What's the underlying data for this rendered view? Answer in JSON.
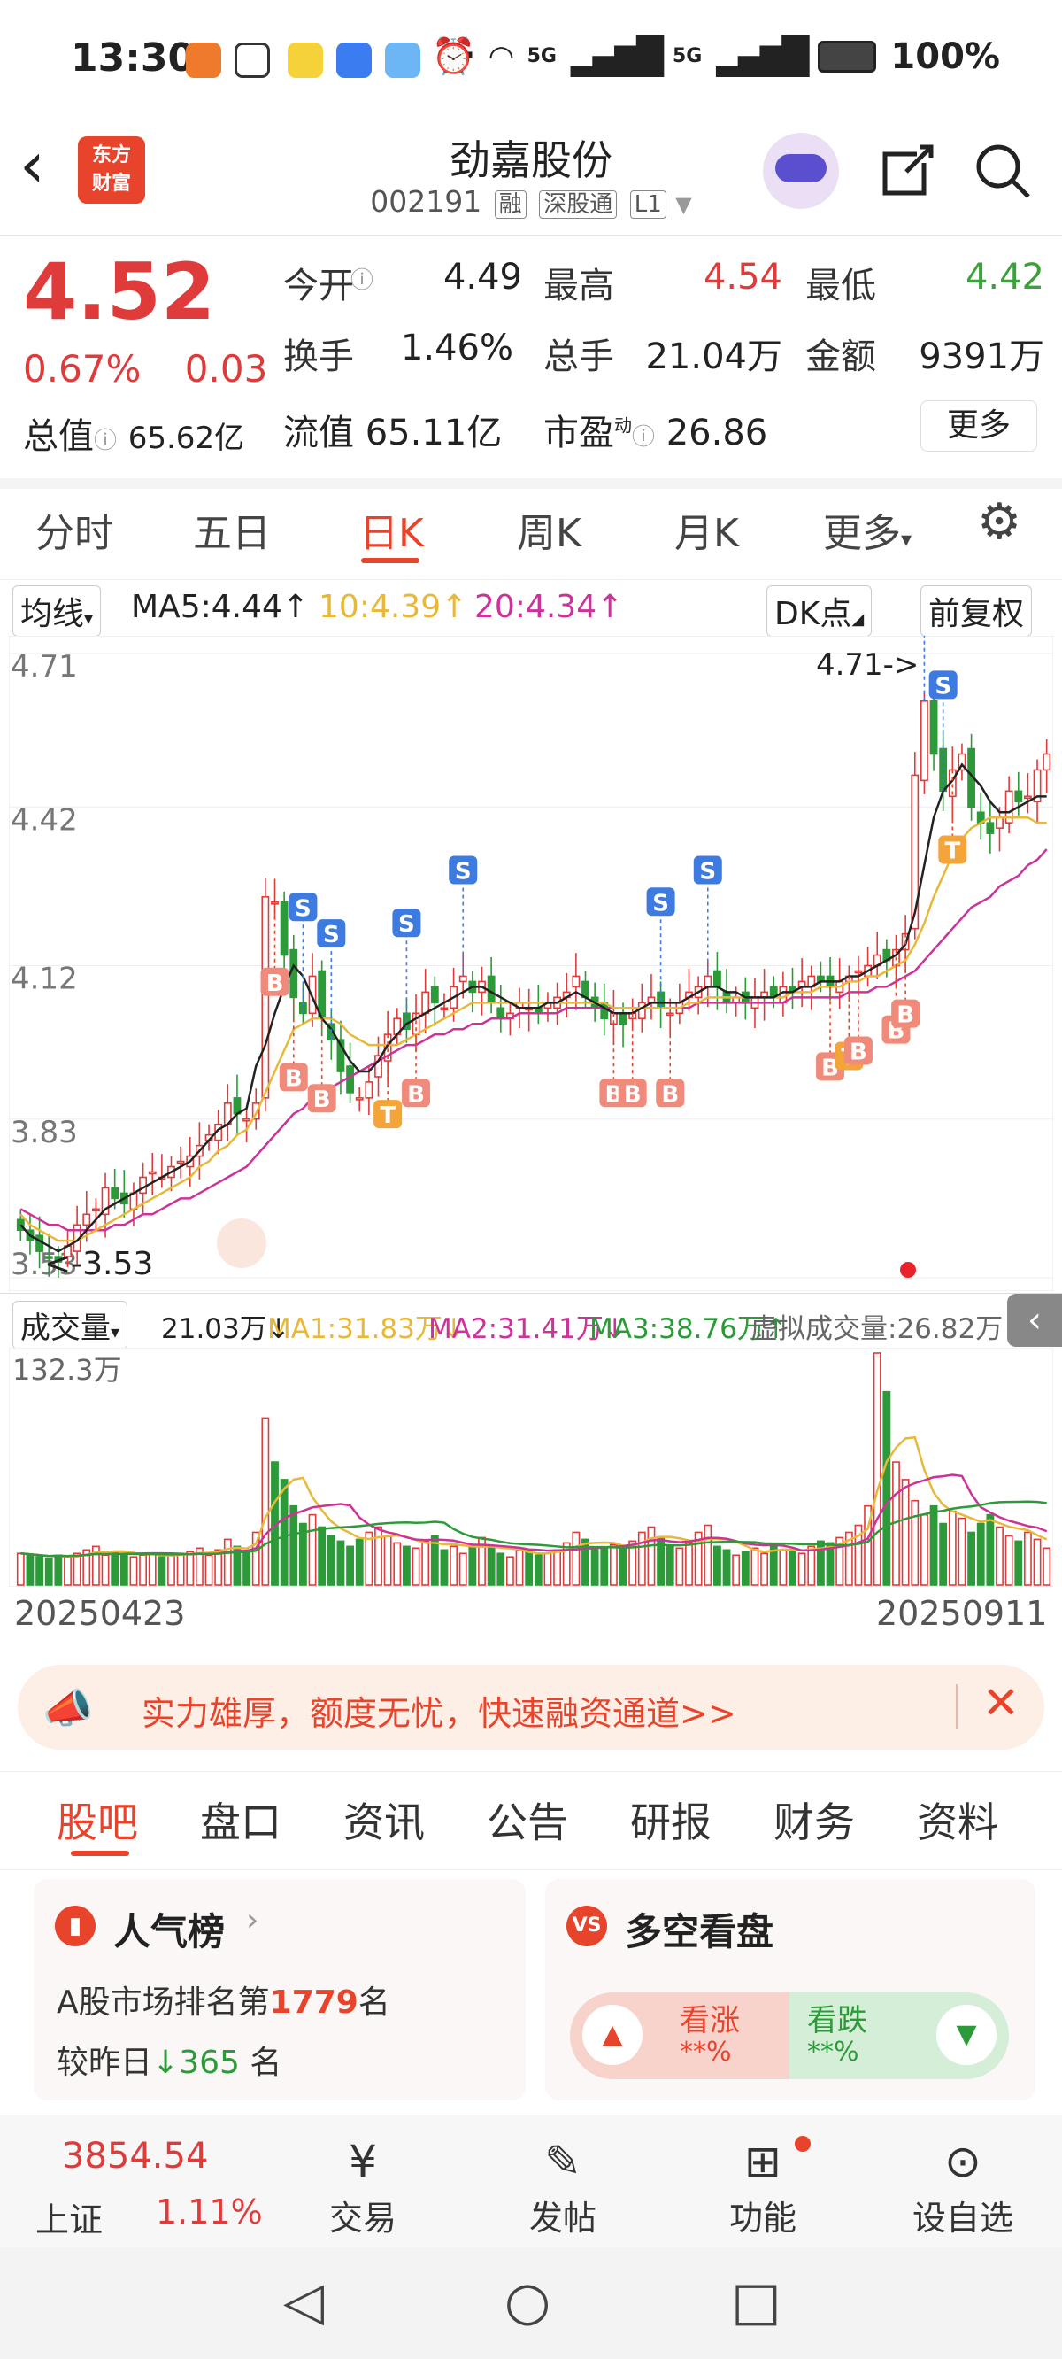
{
  "status": {
    "time": "13:30",
    "dots": "···",
    "net1": "5G",
    "net2": "5G",
    "battery": "100%"
  },
  "header": {
    "logo_line1": "东方",
    "logo_line2": "财富",
    "stock_name": "劲嘉股份",
    "stock_code": "002191",
    "tags": [
      "融",
      "深股通",
      "L1"
    ]
  },
  "quote": {
    "price": "4.52",
    "change_pct": "0.67%",
    "change": "0.03",
    "rows": [
      [
        {
          "k": "今开",
          "v": "4.49",
          "c": "#222"
        },
        {
          "k": "最高",
          "v": "4.54",
          "c": "#e03b3b"
        },
        {
          "k": "最低",
          "v": "4.42",
          "c": "#3aa23a"
        }
      ],
      [
        {
          "k": "换手",
          "v": "1.46%",
          "c": "#222"
        },
        {
          "k": "总手",
          "v": "21.04万",
          "c": "#222"
        },
        {
          "k": "金额",
          "v": "9391万",
          "c": "#222"
        }
      ]
    ],
    "total_value_label": "总值",
    "total_value": "65.62亿",
    "float_label": "流值",
    "float_value": "65.11亿",
    "pe_label": "市盈",
    "pe_sup": "动",
    "pe_value": "26.86",
    "more": "更多"
  },
  "tabs": [
    "分时",
    "五日",
    "日K",
    "周K",
    "月K",
    "更多"
  ],
  "ma": {
    "select": "均线",
    "ma5": "MA5:4.44↑",
    "ma10": "10:4.39↑",
    "ma20": "20:4.34↑",
    "dk": "DK点",
    "fq": "前复权"
  },
  "chart_data": {
    "type": "candlestick",
    "ylim": [
      3.53,
      4.71
    ],
    "y_ticks": [
      "4.71",
      "4.42",
      "4.12",
      "3.83",
      "3.53"
    ],
    "max_label": "4.71->",
    "min_label": "<-3.53",
    "x_start": "20250423",
    "x_end": "20250911",
    "closes": [
      3.62,
      3.6,
      3.58,
      3.57,
      3.56,
      3.59,
      3.63,
      3.65,
      3.66,
      3.7,
      3.68,
      3.67,
      3.69,
      3.72,
      3.73,
      3.72,
      3.74,
      3.75,
      3.76,
      3.78,
      3.8,
      3.82,
      3.86,
      3.84,
      3.83,
      3.86,
      4.25,
      4.24,
      4.14,
      4.06,
      4.03,
      4.1,
      4.02,
      3.98,
      3.92,
      3.88,
      3.87,
      3.9,
      3.95,
      3.99,
      4.02,
      4.0,
      4.03,
      4.07,
      4.05,
      4.04,
      4.08,
      4.1,
      4.07,
      4.09,
      4.05,
      4.02,
      4.03,
      4.05,
      4.04,
      4.03,
      4.05,
      4.06,
      4.07,
      4.1,
      4.06,
      4.04,
      4.02,
      4.03,
      4.01,
      4.03,
      4.05,
      4.06,
      4.04,
      4.03,
      4.05,
      4.07,
      4.08,
      4.1,
      4.08,
      4.05,
      4.06,
      4.05,
      4.06,
      4.07,
      4.06,
      4.08,
      4.07,
      4.09,
      4.1,
      4.09,
      4.08,
      4.09,
      4.1,
      4.11,
      4.12,
      4.14,
      4.13,
      4.15,
      4.18,
      4.48,
      4.62,
      4.52,
      4.45,
      4.49,
      4.52,
      4.42,
      4.39,
      4.37,
      4.4,
      4.45,
      4.43,
      4.44,
      4.49,
      4.52
    ],
    "ma5": [
      3.63,
      3.61,
      3.6,
      3.59,
      3.58,
      3.59,
      3.6,
      3.62,
      3.64,
      3.66,
      3.67,
      3.68,
      3.69,
      3.7,
      3.71,
      3.72,
      3.73,
      3.74,
      3.75,
      3.77,
      3.79,
      3.81,
      3.82,
      3.84,
      3.85,
      3.93,
      3.97,
      4.03,
      4.08,
      4.12,
      4.1,
      4.06,
      4.02,
      4.0,
      3.97,
      3.94,
      3.92,
      3.92,
      3.94,
      3.97,
      3.99,
      4.01,
      4.02,
      4.03,
      4.04,
      4.05,
      4.06,
      4.07,
      4.08,
      4.08,
      4.07,
      4.06,
      4.05,
      4.04,
      4.04,
      4.04,
      4.05,
      4.05,
      4.06,
      4.07,
      4.06,
      4.05,
      4.04,
      4.03,
      4.03,
      4.03,
      4.04,
      4.05,
      4.05,
      4.05,
      4.05,
      4.06,
      4.07,
      4.08,
      4.08,
      4.07,
      4.07,
      4.06,
      4.06,
      4.06,
      4.06,
      4.07,
      4.07,
      4.08,
      4.08,
      4.09,
      4.09,
      4.09,
      4.1,
      4.1,
      4.11,
      4.12,
      4.13,
      4.14,
      4.16,
      4.22,
      4.31,
      4.4,
      4.45,
      4.47,
      4.5,
      4.48,
      4.46,
      4.43,
      4.41,
      4.41,
      4.42,
      4.43,
      4.44,
      4.44
    ],
    "ma10": [
      3.65,
      3.63,
      3.62,
      3.61,
      3.6,
      3.6,
      3.6,
      3.61,
      3.62,
      3.63,
      3.64,
      3.65,
      3.66,
      3.67,
      3.68,
      3.69,
      3.7,
      3.71,
      3.72,
      3.74,
      3.75,
      3.77,
      3.78,
      3.8,
      3.81,
      3.84,
      3.88,
      3.92,
      3.96,
      4.0,
      4.01,
      4.02,
      4.02,
      4.02,
      4.01,
      3.99,
      3.98,
      3.97,
      3.97,
      3.97,
      3.97,
      3.98,
      3.99,
      4.0,
      4.01,
      4.02,
      4.03,
      4.04,
      4.05,
      4.05,
      4.05,
      4.05,
      4.05,
      4.05,
      4.05,
      4.05,
      4.05,
      4.05,
      4.05,
      4.05,
      4.05,
      4.05,
      4.05,
      4.04,
      4.04,
      4.04,
      4.04,
      4.04,
      4.04,
      4.04,
      4.04,
      4.05,
      4.05,
      4.06,
      4.06,
      4.06,
      4.06,
      4.06,
      4.06,
      4.06,
      4.06,
      4.06,
      4.07,
      4.07,
      4.07,
      4.08,
      4.08,
      4.08,
      4.09,
      4.09,
      4.1,
      4.1,
      4.11,
      4.12,
      4.13,
      4.16,
      4.2,
      4.25,
      4.29,
      4.33,
      4.36,
      4.38,
      4.39,
      4.4,
      4.4,
      4.4,
      4.4,
      4.4,
      4.39,
      4.39
    ],
    "ma20": [
      3.66,
      3.65,
      3.64,
      3.63,
      3.63,
      3.62,
      3.62,
      3.62,
      3.62,
      3.62,
      3.63,
      3.63,
      3.64,
      3.65,
      3.65,
      3.66,
      3.67,
      3.68,
      3.68,
      3.69,
      3.7,
      3.71,
      3.72,
      3.73,
      3.74,
      3.76,
      3.78,
      3.8,
      3.82,
      3.84,
      3.85,
      3.87,
      3.88,
      3.89,
      3.9,
      3.91,
      3.92,
      3.93,
      3.94,
      3.95,
      3.96,
      3.97,
      3.97,
      3.98,
      3.99,
      3.99,
      4.0,
      4.0,
      4.01,
      4.01,
      4.02,
      4.02,
      4.02,
      4.03,
      4.03,
      4.03,
      4.03,
      4.03,
      4.04,
      4.04,
      4.04,
      4.04,
      4.04,
      4.04,
      4.04,
      4.04,
      4.04,
      4.04,
      4.04,
      4.04,
      4.04,
      4.04,
      4.05,
      4.05,
      4.05,
      4.05,
      4.05,
      4.05,
      4.05,
      4.05,
      4.05,
      4.05,
      4.06,
      4.06,
      4.06,
      4.06,
      4.06,
      4.06,
      4.07,
      4.07,
      4.07,
      4.08,
      4.08,
      4.09,
      4.1,
      4.11,
      4.13,
      4.15,
      4.17,
      4.19,
      4.21,
      4.23,
      4.24,
      4.25,
      4.27,
      4.28,
      4.29,
      4.31,
      4.32,
      4.34
    ],
    "signals": [
      {
        "i": 27,
        "t": "B"
      },
      {
        "i": 29,
        "t": "B"
      },
      {
        "i": 30,
        "t": "S"
      },
      {
        "i": 32,
        "t": "B"
      },
      {
        "i": 33,
        "t": "S"
      },
      {
        "i": 39,
        "t": "T"
      },
      {
        "i": 42,
        "t": "B"
      },
      {
        "i": 41,
        "t": "S"
      },
      {
        "i": 47,
        "t": "S"
      },
      {
        "i": 63,
        "t": "B"
      },
      {
        "i": 65,
        "t": "B"
      },
      {
        "i": 68,
        "t": "S"
      },
      {
        "i": 69,
        "t": "B"
      },
      {
        "i": 73,
        "t": "S"
      },
      {
        "i": 86,
        "t": "B"
      },
      {
        "i": 88,
        "t": "T"
      },
      {
        "i": 89,
        "t": "B"
      },
      {
        "i": 93,
        "t": "B"
      },
      {
        "i": 94,
        "t": "B"
      },
      {
        "i": 96,
        "t": "S"
      },
      {
        "i": 98,
        "t": "S"
      },
      {
        "i": 99,
        "t": "T"
      }
    ]
  },
  "volume": {
    "select": "成交量",
    "cur": "21.03万↓",
    "ma1": "MA1:31.83万↓",
    "ma2": "MA2:31.41万↓",
    "ma3": "MA3:38.76万↑",
    "virtual": "虚拟成交量:26.82万",
    "max_label": "132.3万",
    "values": [
      18,
      17,
      16,
      15,
      17,
      16,
      18,
      20,
      22,
      17,
      19,
      18,
      16,
      17,
      18,
      16,
      17,
      18,
      19,
      21,
      17,
      20,
      26,
      22,
      19,
      30,
      95,
      70,
      60,
      45,
      35,
      40,
      33,
      28,
      25,
      22,
      26,
      30,
      33,
      28,
      24,
      22,
      21,
      25,
      28,
      20,
      22,
      18,
      22,
      27,
      21,
      18,
      16,
      20,
      19,
      17,
      18,
      20,
      24,
      30,
      26,
      20,
      21,
      23,
      22,
      25,
      30,
      33,
      27,
      22,
      21,
      24,
      30,
      34,
      22,
      20,
      17,
      19,
      21,
      18,
      23,
      20,
      19,
      18,
      22,
      25,
      24,
      27,
      30,
      34,
      45,
      132,
      110,
      70,
      60,
      48,
      40,
      45,
      35,
      42,
      38,
      30,
      35,
      40,
      33,
      28,
      25,
      30,
      26,
      21
    ]
  },
  "banner": {
    "text": "实力雄厚，额度无忧，快速融资通道>>"
  },
  "subtabs": [
    "股吧",
    "盘口",
    "资讯",
    "公告",
    "研报",
    "财务",
    "资料"
  ],
  "popularity": {
    "title": "人气榜",
    "line1_pre": "A股市场排名第",
    "rank": "1779",
    "line1_post": "名",
    "line2_pre": "较昨日",
    "delta": "365",
    "line2_post": "名"
  },
  "sentiment": {
    "title": "多空看盘",
    "bull": "看涨",
    "bull_val": "**%",
    "bear": "看跌",
    "bear_val": "**%"
  },
  "bottombar": {
    "index_value": "3854.54",
    "index_name": "上证",
    "index_pct": "1.11%",
    "items": [
      "交易",
      "发帖",
      "功能",
      "设自选"
    ]
  }
}
